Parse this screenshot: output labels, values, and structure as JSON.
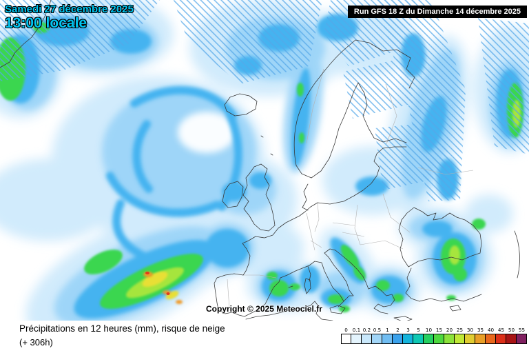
{
  "header": {
    "date_line": "Samedi 27 décembre 2025",
    "time_line": "13:00 locale",
    "run_info": "Run GFS 18 Z du Dimanche 14 décembre 2025"
  },
  "map": {
    "copyright": "Copyright © 2025 Meteociel.fr",
    "region": "Europe / Atlantique Nord",
    "hatch_meaning": "risque de neige"
  },
  "footer": {
    "title": "Précipitations en 12 heures (mm), risque de neige",
    "step": "(+ 306h)"
  },
  "legend": {
    "values": [
      "0",
      "0.1",
      "0.2",
      "0.5",
      "1",
      "2",
      "3",
      "5",
      "10",
      "15",
      "20",
      "25",
      "30",
      "35",
      "40",
      "45",
      "50",
      "55"
    ],
    "colors": [
      "#ffffff",
      "#e4f4fd",
      "#c9e8fb",
      "#a2d6f8",
      "#70bdf2",
      "#3aa2ec",
      "#14b4dc",
      "#0ec8b4",
      "#26d060",
      "#4ed83e",
      "#8ce23a",
      "#c0e836",
      "#e0cc30",
      "#e89e26",
      "#e8671c",
      "#dc2f18",
      "#a81414",
      "#802060"
    ]
  },
  "colors": {
    "header_text": "#00c6f2",
    "run_box_bg": "#000000",
    "run_box_text": "#ffffff",
    "snow_hatch": "#56a8e8"
  }
}
